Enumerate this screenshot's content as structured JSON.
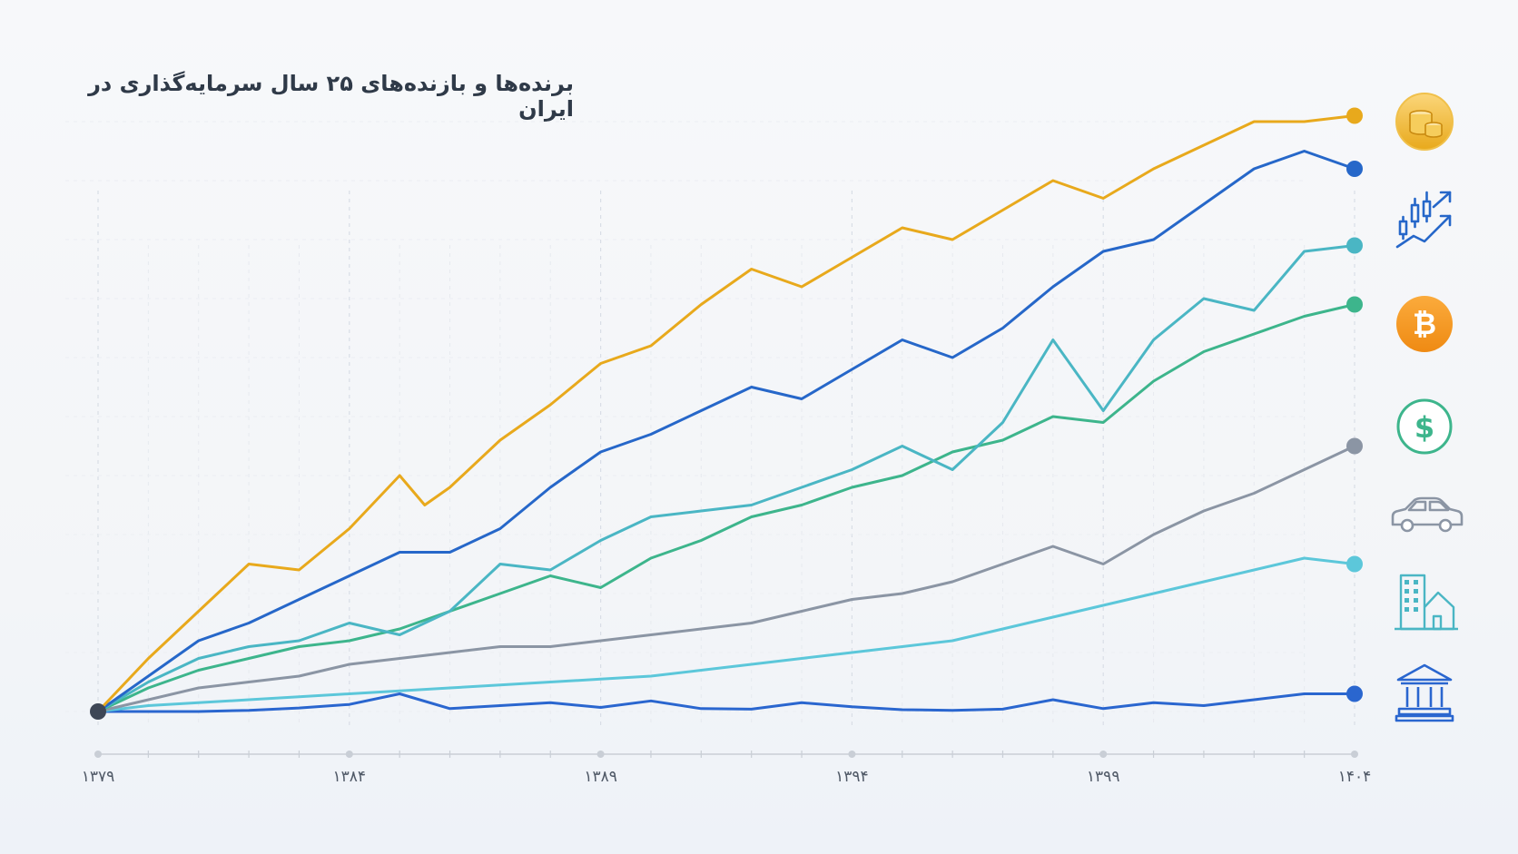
{
  "title": "برنده‌ها و بازنده‌های ۲۵ سال سرمایه‌گذاری در ایران",
  "chart_data": {
    "type": "line",
    "title": "برنده‌ها و بازنده‌های ۲۵ سال سرمایه‌گذاری در ایران",
    "xlabel": "",
    "ylabel": "",
    "x_ticks": [
      1379,
      1384,
      1389,
      1394,
      1399,
      1404
    ],
    "x_tick_labels": [
      "۱۳۷۹",
      "۱۳۸۴",
      "۱۳۸۹",
      "۱۳۹۴",
      "۱۳۹۹",
      "۱۴۰۴"
    ],
    "xlim": [
      1379,
      1404
    ],
    "ylim": [
      0,
      100
    ],
    "y_axis_labels_shown": false,
    "grid": true,
    "legend": "icons at right end of each line",
    "origin": {
      "x": 1379,
      "y": 0
    },
    "series": [
      {
        "icon": "gold-coins-icon",
        "color": "#e8a91c",
        "x": [
          1379,
          1380,
          1381,
          1382,
          1383,
          1384,
          1385,
          1385.5,
          1386,
          1387,
          1388,
          1389,
          1390,
          1391,
          1392,
          1393,
          1394,
          1395,
          1396,
          1397,
          1398,
          1399,
          1400,
          1401,
          1402,
          1403,
          1404
        ],
        "values": [
          0,
          9,
          17,
          25,
          24,
          31,
          40,
          35,
          38,
          46,
          52,
          59,
          62,
          69,
          75,
          72,
          77,
          82,
          80,
          85,
          90,
          87,
          92,
          96,
          100,
          100,
          101
        ]
      },
      {
        "icon": "stock-chart-icon",
        "color": "#2667c9",
        "x": [
          1379,
          1380,
          1381,
          1382,
          1383,
          1384,
          1385,
          1386,
          1387,
          1388,
          1389,
          1390,
          1391,
          1392,
          1393,
          1394,
          1395,
          1396,
          1397,
          1398,
          1399,
          1400,
          1401,
          1402,
          1403,
          1404
        ],
        "values": [
          0,
          6,
          12,
          15,
          19,
          23,
          27,
          27,
          31,
          38,
          44,
          47,
          51,
          55,
          53,
          58,
          63,
          60,
          65,
          72,
          78,
          80,
          86,
          92,
          95,
          92
        ]
      },
      {
        "icon": "bitcoin-icon",
        "color": "#4ab6c4",
        "x": [
          1379,
          1380,
          1381,
          1382,
          1383,
          1384,
          1385,
          1386,
          1387,
          1388,
          1389,
          1390,
          1391,
          1392,
          1393,
          1394,
          1395,
          1396,
          1397,
          1398,
          1399,
          1400,
          1401,
          1402,
          1403,
          1404
        ],
        "values": [
          0,
          5,
          9,
          11,
          12,
          15,
          13,
          17,
          25,
          24,
          29,
          33,
          34,
          35,
          38,
          41,
          45,
          41,
          49,
          63,
          51,
          63,
          70,
          68,
          78,
          79
        ]
      },
      {
        "icon": "dollar-icon",
        "color": "#3db58c",
        "x": [
          1379,
          1380,
          1381,
          1382,
          1383,
          1384,
          1385,
          1386,
          1387,
          1388,
          1389,
          1390,
          1391,
          1392,
          1393,
          1394,
          1395,
          1396,
          1397,
          1398,
          1399,
          1400,
          1401,
          1402,
          1403,
          1404
        ],
        "values": [
          0,
          4,
          7,
          9,
          11,
          12,
          14,
          17,
          20,
          23,
          21,
          26,
          29,
          33,
          35,
          38,
          40,
          44,
          46,
          50,
          49,
          56,
          61,
          64,
          67,
          69
        ]
      },
      {
        "icon": "car-icon",
        "color": "#8b95a4",
        "x": [
          1379,
          1380,
          1381,
          1382,
          1383,
          1384,
          1385,
          1386,
          1387,
          1388,
          1389,
          1390,
          1391,
          1392,
          1393,
          1394,
          1395,
          1396,
          1397,
          1398,
          1399,
          1400,
          1401,
          1402,
          1403,
          1404
        ],
        "values": [
          0,
          2,
          4,
          5,
          6,
          8,
          9,
          10,
          11,
          11,
          12,
          13,
          14,
          15,
          17,
          19,
          20,
          22,
          25,
          28,
          25,
          30,
          34,
          37,
          41,
          45
        ]
      },
      {
        "icon": "real-estate-icon",
        "color": "#5cc7da",
        "x": [
          1379,
          1380,
          1381,
          1382,
          1383,
          1384,
          1385,
          1386,
          1387,
          1388,
          1389,
          1390,
          1391,
          1392,
          1393,
          1394,
          1395,
          1396,
          1397,
          1398,
          1399,
          1400,
          1401,
          1402,
          1403,
          1404
        ],
        "values": [
          0,
          1,
          1.5,
          2,
          2.5,
          3,
          3.5,
          4,
          4.5,
          5,
          5.5,
          6,
          7,
          8,
          9,
          10,
          11,
          12,
          14,
          16,
          18,
          20,
          22,
          24,
          26,
          25
        ]
      },
      {
        "icon": "bank-icon",
        "color": "#2a66cf",
        "x": [
          1379,
          1380,
          1381,
          1382,
          1383,
          1384,
          1385,
          1386,
          1387,
          1388,
          1389,
          1390,
          1391,
          1392,
          1393,
          1394,
          1395,
          1396,
          1397,
          1398,
          1399,
          1400,
          1401,
          1402,
          1403,
          1404
        ],
        "values": [
          0,
          0,
          0,
          0.2,
          0.6,
          1.2,
          3,
          0.5,
          1,
          1.5,
          0.7,
          1.8,
          0.5,
          0.4,
          1.5,
          0.8,
          0.3,
          0.2,
          0.4,
          2,
          0.5,
          1.5,
          1,
          2,
          3,
          3
        ]
      }
    ]
  }
}
